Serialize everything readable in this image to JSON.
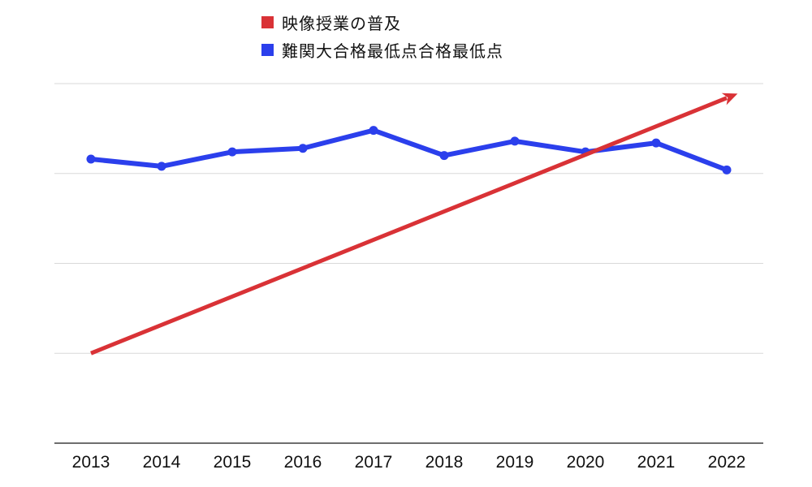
{
  "page": {
    "background": "#FFFFFF"
  },
  "colors": {
    "red_series": "#D93236",
    "blue_series": "#2B3FEC",
    "gridline": "#D9D9D9",
    "axis_line": "#6E6E6E",
    "axis_label_text": "#111111",
    "legend_text": "#111111"
  },
  "chart_data": {
    "type": "line",
    "title": "",
    "xlabel": "",
    "ylabel": "",
    "categories": [
      "2013",
      "2014",
      "2015",
      "2016",
      "2017",
      "2018",
      "2019",
      "2020",
      "2021",
      "2022"
    ],
    "series": [
      {
        "name": "映像授業の普及",
        "color": "#D93236",
        "style": "straight-trend-arrow",
        "points": [
          {
            "year": 2013,
            "value": 25
          },
          {
            "year": 2022,
            "value": 96
          }
        ]
      },
      {
        "name": "難関大合格最低点合格最低点",
        "color": "#2B3FEC",
        "style": "line-with-round-markers",
        "values": [
          79,
          77,
          81,
          82,
          87,
          80,
          84,
          81,
          83.5,
          76
        ]
      }
    ],
    "ylim": [
      0,
      100
    ],
    "y_axis_labels_visible": false,
    "gridlines": {
      "horizontal_values": [
        25,
        50,
        75,
        100
      ],
      "color": "#D9D9D9"
    },
    "axis": {
      "color": "#6E6E6E"
    },
    "legend_position": "top-center"
  }
}
